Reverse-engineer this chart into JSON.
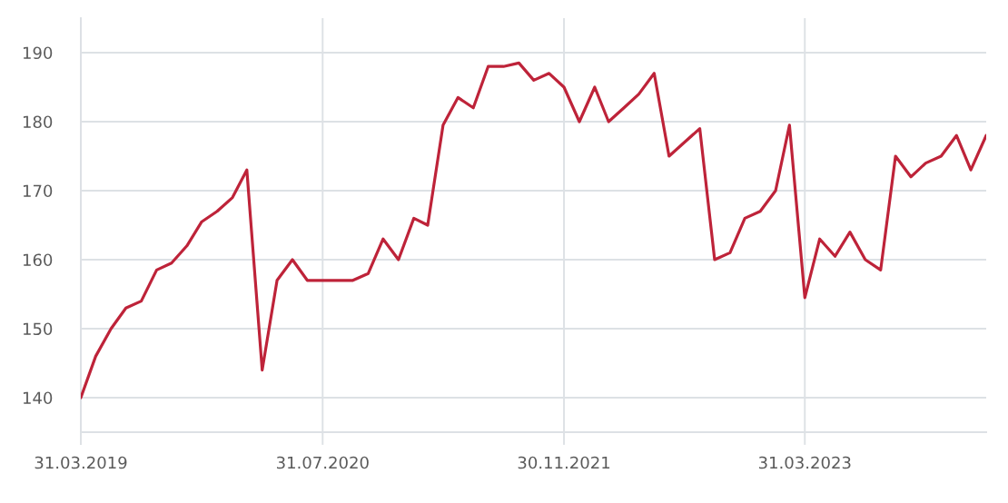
{
  "chart_data": {
    "type": "line",
    "x": [
      "2019-03-31",
      "2019-04-30",
      "2019-05-31",
      "2019-06-30",
      "2019-07-31",
      "2019-08-31",
      "2019-09-30",
      "2019-10-31",
      "2019-11-30",
      "2019-12-31",
      "2020-01-31",
      "2020-02-29",
      "2020-03-31",
      "2020-04-30",
      "2020-05-31",
      "2020-06-30",
      "2020-07-31",
      "2020-08-31",
      "2020-09-30",
      "2020-10-31",
      "2020-11-30",
      "2020-12-31",
      "2021-01-31",
      "2021-02-28",
      "2021-03-31",
      "2021-04-30",
      "2021-05-31",
      "2021-06-30",
      "2021-07-31",
      "2021-08-31",
      "2021-09-30",
      "2021-10-31",
      "2021-11-30",
      "2021-12-31",
      "2022-01-31",
      "2022-02-28",
      "2022-03-31",
      "2022-04-30",
      "2022-05-31",
      "2022-06-30",
      "2022-07-31",
      "2022-08-31",
      "2022-09-30",
      "2022-10-31",
      "2022-11-30",
      "2022-12-31",
      "2023-01-31",
      "2023-02-28",
      "2023-03-31",
      "2023-04-30",
      "2023-05-31",
      "2023-06-30",
      "2023-07-31",
      "2023-08-31",
      "2023-09-30",
      "2023-10-31",
      "2023-11-30",
      "2023-12-31",
      "2024-01-31",
      "2024-02-29",
      "2024-03-31"
    ],
    "series": [
      {
        "color": "#be2339",
        "values": [
          140,
          146,
          150,
          153,
          154,
          158.5,
          159.5,
          162,
          165.5,
          167,
          169,
          173,
          144,
          157,
          160,
          157,
          157,
          157,
          157,
          158,
          163,
          160,
          166,
          165,
          179.5,
          183.5,
          182,
          188,
          188,
          188.5,
          186,
          187,
          185,
          180,
          185,
          180,
          182,
          184,
          187,
          175,
          177,
          179,
          160,
          161,
          166,
          167,
          170,
          179.5,
          154.5,
          163,
          160.5,
          164,
          160,
          158.5,
          175,
          172,
          174,
          175,
          178,
          173,
          178
        ]
      }
    ],
    "xlim": [
      "2019-03-31",
      "2024-03-31"
    ],
    "xticks": [
      {
        "value": "2019-03-31",
        "label": "31.03.2019"
      },
      {
        "value": "2020-07-31",
        "label": "31.07.2020"
      },
      {
        "value": "2021-11-30",
        "label": "30.11.2021"
      },
      {
        "value": "2023-03-31",
        "label": "31.03.2023"
      }
    ],
    "ylim": [
      135,
      195
    ],
    "yticks": [
      140,
      150,
      160,
      170,
      180,
      190
    ],
    "grid": true
  }
}
